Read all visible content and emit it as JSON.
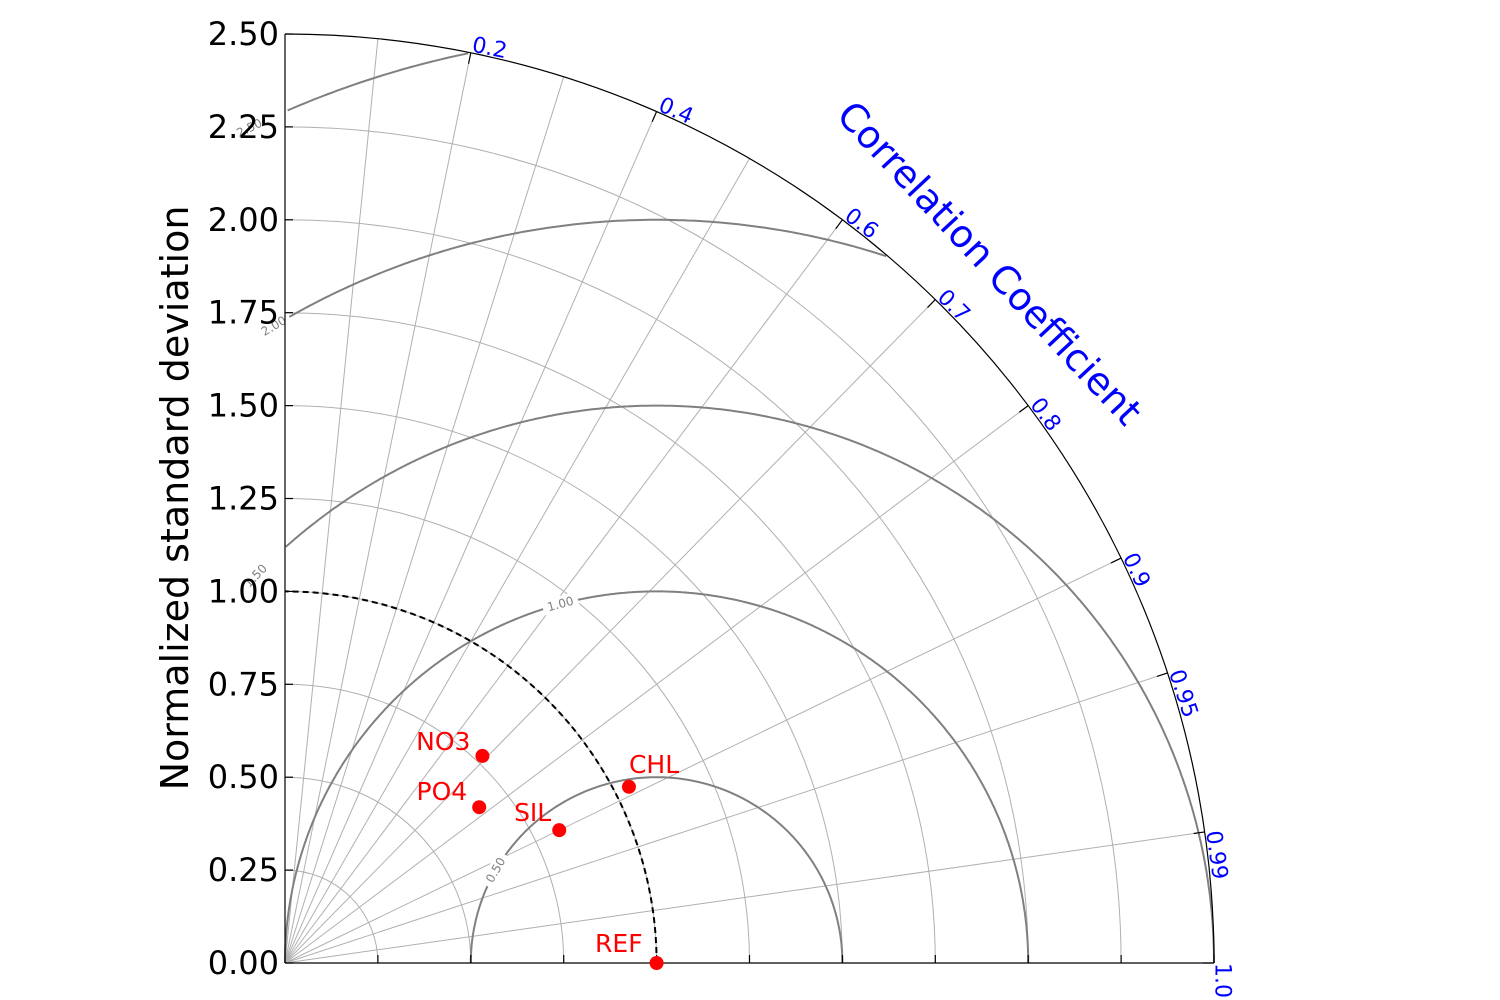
{
  "chart_data": {
    "type": "scatter",
    "subtype": "taylor-diagram",
    "ylabel": "Normalized standard deviation",
    "angular_axis_label": "Correlation Coefficient",
    "std_ticks": [
      "0.00",
      "0.25",
      "0.50",
      "0.75",
      "1.00",
      "1.25",
      "1.50",
      "1.75",
      "2.00",
      "2.25",
      "2.50"
    ],
    "std_max": 2.5,
    "std_gridlines": [
      0.25,
      0.5,
      0.75,
      1.0,
      1.25,
      1.5,
      1.75,
      2.0,
      2.25
    ],
    "correlation_ticks": [
      {
        "value": 0.2,
        "label": "0.2"
      },
      {
        "value": 0.4,
        "label": "0.4"
      },
      {
        "value": 0.6,
        "label": "0.6"
      },
      {
        "value": 0.7,
        "label": "0.7"
      },
      {
        "value": 0.8,
        "label": "0.8"
      },
      {
        "value": 0.9,
        "label": "0.9"
      },
      {
        "value": 0.95,
        "label": "0.95"
      },
      {
        "value": 0.99,
        "label": "0.99"
      },
      {
        "value": 1.0,
        "label": "1.0"
      }
    ],
    "correlation_gridlines": [
      0.1,
      0.2,
      0.3,
      0.4,
      0.5,
      0.6,
      0.7,
      0.8,
      0.9,
      0.95,
      0.99
    ],
    "rmsd_contours": [
      {
        "value": 0.5,
        "label": "0.50"
      },
      {
        "value": 1.0,
        "label": "1.00"
      },
      {
        "value": 1.5,
        "label": "1.50"
      },
      {
        "value": 2.0,
        "label": "2.00"
      },
      {
        "value": 2.5,
        "label": "2.50"
      }
    ],
    "reference_std": 1.0,
    "points": [
      {
        "name": "REF",
        "std": 1.0,
        "corr": 1.0
      },
      {
        "name": "NO3",
        "std": 0.77,
        "corr": 0.69
      },
      {
        "name": "PO4",
        "std": 0.67,
        "corr": 0.78
      },
      {
        "name": "SIL",
        "std": 0.82,
        "corr": 0.9
      },
      {
        "name": "CHL",
        "std": 1.04,
        "corr": 0.89
      }
    ],
    "colors": {
      "points": "#ff0000",
      "angular_labels": "#0000ff",
      "grid": "#b0b0b0",
      "contours": "#808080",
      "axes": "#000000"
    },
    "grid": true
  }
}
